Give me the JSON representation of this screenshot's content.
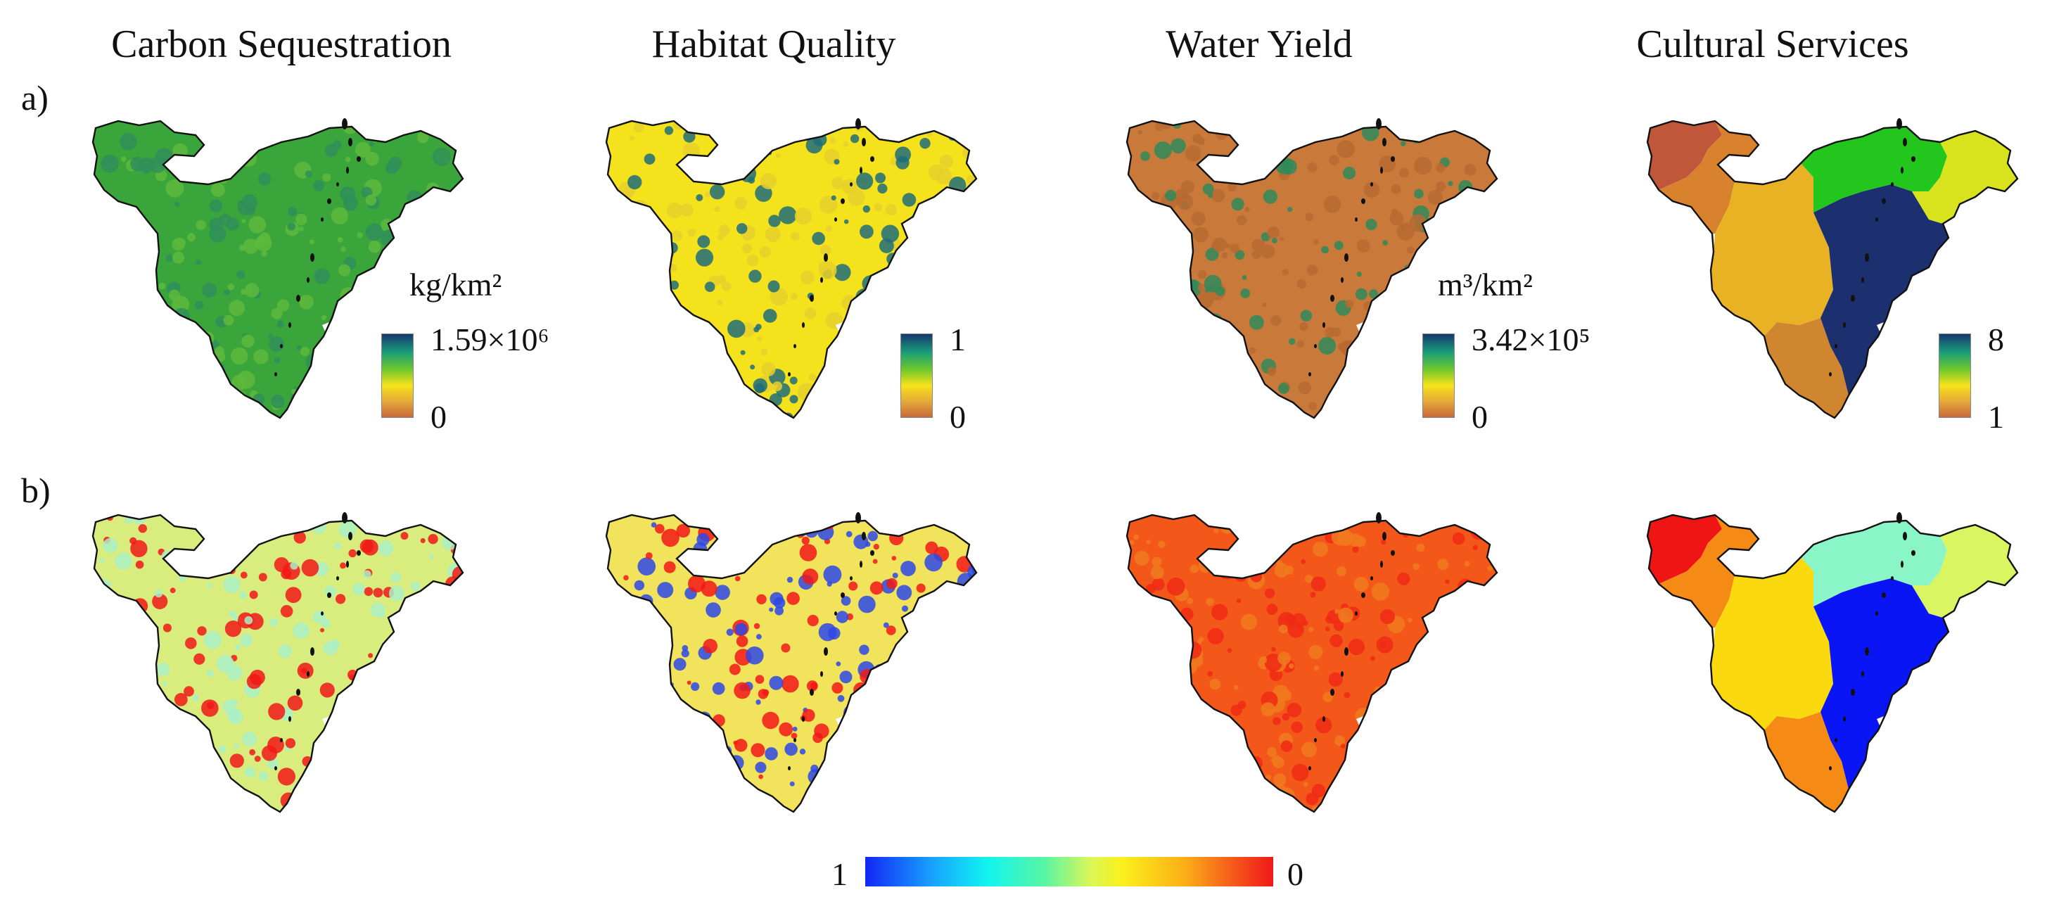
{
  "columns": [
    {
      "title": "Carbon Sequestration"
    },
    {
      "title": "Habitat Quality"
    },
    {
      "title": "Water Yield"
    },
    {
      "title": "Cultural Services"
    }
  ],
  "rows": [
    {
      "label": "a)"
    },
    {
      "label": "b)"
    }
  ],
  "legends_a": [
    {
      "unit": "kg/km²",
      "max": "1.59×10⁶",
      "min": "0"
    },
    {
      "unit": "",
      "max": "1",
      "min": "0"
    },
    {
      "unit": "m³/km²",
      "max": "3.42×10⁵",
      "min": "0"
    },
    {
      "unit": "",
      "max": "8",
      "min": "1"
    }
  ],
  "legend_b": {
    "left": "1",
    "right": "0"
  },
  "colors": {
    "a_carbon": [
      "#3aa53a",
      "#5db83c",
      "#2f8f5a"
    ],
    "a_habitat": [
      "#f4e21d",
      "#e8d02a",
      "#1e6d7a"
    ],
    "a_water": [
      "#c97a3b",
      "#b86a33",
      "#2f8a5a"
    ],
    "a_cultural_regions": [
      "#c0573a",
      "#d9822e",
      "#e8b224",
      "#d0862e",
      "#1c2f6e",
      "#22c61c",
      "#d8e31e"
    ],
    "b_carbon": [
      "#d8ed7e",
      "#aaf0c5",
      "#f21717"
    ],
    "b_habitat": [
      "#f1e35b",
      "#2d48e8",
      "#f21717"
    ],
    "b_water": [
      "#f4571a",
      "#f07a1e",
      "#ee2a15"
    ],
    "b_cultural_regions": [
      "#ef1515",
      "#f58a14",
      "#fbd90f",
      "#f58a14",
      "#0a15f5",
      "#8af5c6",
      "#d9f562"
    ]
  }
}
